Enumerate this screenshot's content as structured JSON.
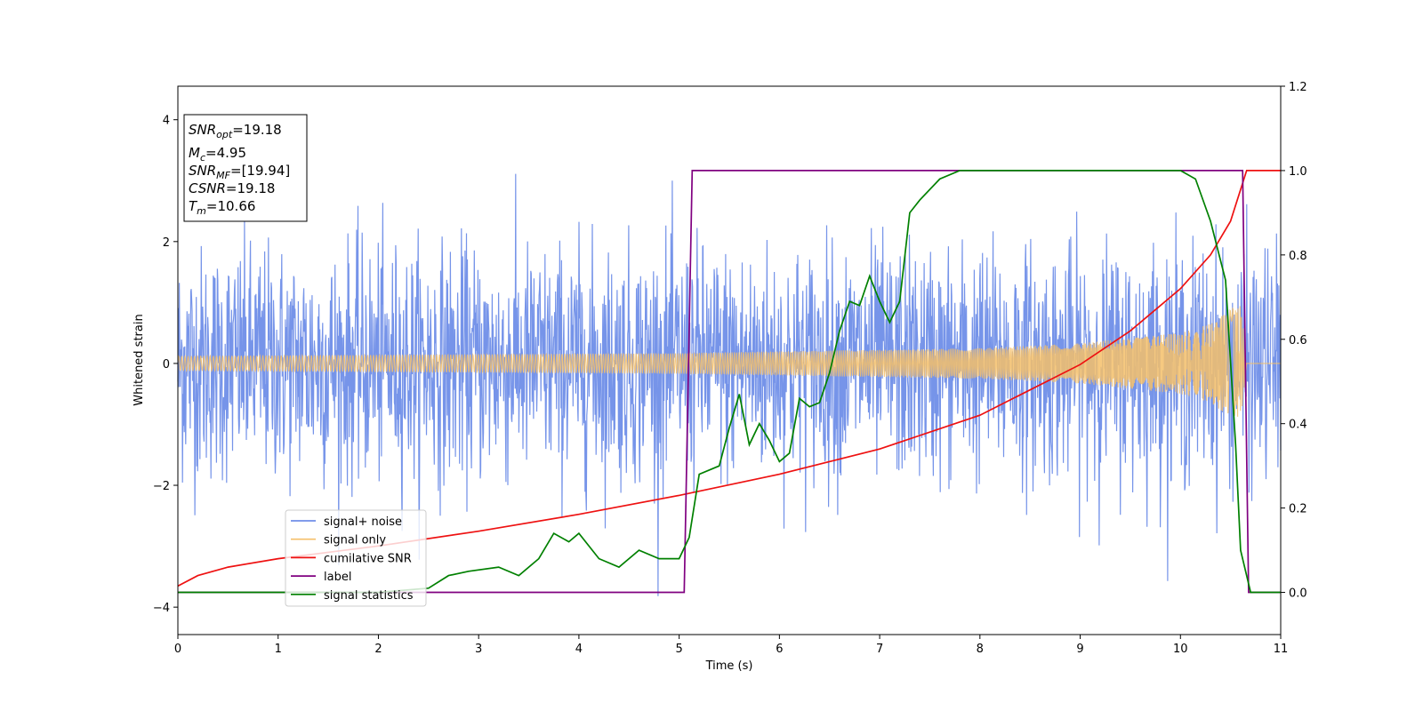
{
  "chart_data": {
    "type": "line",
    "xlabel": "Time (s)",
    "ylabel": "Whitened strain",
    "xlim": [
      0,
      11
    ],
    "ylim": [
      -4.45,
      4.55
    ],
    "y2lim": [
      -0.1,
      1.2
    ],
    "x_ticks": [
      "0",
      "1",
      "2",
      "3",
      "4",
      "5",
      "6",
      "7",
      "8",
      "9",
      "10",
      "11"
    ],
    "x_tick_values": [
      0,
      1,
      2,
      3,
      4,
      5,
      6,
      7,
      8,
      9,
      10,
      11
    ],
    "y_ticks": [
      "−4",
      "−2",
      "0",
      "2",
      "4"
    ],
    "y_tick_values": [
      -4,
      -2,
      0,
      2,
      4
    ],
    "y2_ticks": [
      "0.0",
      "0.2",
      "0.4",
      "0.6",
      "0.8",
      "1.0",
      "1.2"
    ],
    "y2_tick_values": [
      0,
      0.2,
      0.4,
      0.6,
      0.8,
      1.0,
      1.2
    ],
    "grid": false,
    "legend_position": "lower-left",
    "annotation": [
      {
        "var": "SNR",
        "sub": "opt",
        "value": "=19.18"
      },
      {
        "var": "M",
        "sub": "c",
        "value": "=4.95"
      },
      {
        "var": "SNR",
        "sub": "MF",
        "value": "=[19.94]"
      },
      {
        "var": "CSNR",
        "sub": "",
        "value": "=19.18"
      },
      {
        "var": "T",
        "sub": "m",
        "value": "=10.66"
      }
    ],
    "series": [
      {
        "name": "signal+ noise",
        "color": "#6f8ee8",
        "axis": "left",
        "description_values": {
          "noise_std": 0.95,
          "extent": [
            0,
            11
          ]
        }
      },
      {
        "name": "signal only",
        "color": "#f5c06a",
        "axis": "left",
        "envelope": {
          "t": [
            0,
            5,
            8,
            9,
            10,
            10.3,
            10.6,
            10.66
          ],
          "amp": [
            0.12,
            0.17,
            0.25,
            0.33,
            0.5,
            0.65,
            1.0,
            0.0
          ]
        }
      },
      {
        "name": "cumilative SNR",
        "color": "#ee1111",
        "axis": "right",
        "x": [
          0,
          0.2,
          0.5,
          1,
          2,
          3,
          4,
          5,
          6,
          7,
          8,
          9,
          9.5,
          10,
          10.3,
          10.5,
          10.66,
          11
        ],
        "y": [
          0.015,
          0.04,
          0.06,
          0.08,
          0.11,
          0.145,
          0.185,
          0.23,
          0.28,
          0.34,
          0.42,
          0.54,
          0.62,
          0.72,
          0.8,
          0.88,
          1.0,
          1.0
        ]
      },
      {
        "name": "label",
        "color": "#800080",
        "axis": "right",
        "x": [
          0,
          5.05,
          5.13,
          10.62,
          10.68,
          11
        ],
        "y": [
          0,
          0,
          1,
          1,
          0,
          0
        ]
      },
      {
        "name": "signal statistics",
        "color": "#008000",
        "axis": "right",
        "x": [
          0,
          1,
          2,
          2.5,
          2.7,
          2.9,
          3.2,
          3.4,
          3.6,
          3.75,
          3.9,
          4.0,
          4.2,
          4.4,
          4.6,
          4.8,
          5.0,
          5.1,
          5.2,
          5.4,
          5.5,
          5.6,
          5.7,
          5.8,
          5.9,
          6.0,
          6.1,
          6.2,
          6.3,
          6.4,
          6.5,
          6.6,
          6.7,
          6.8,
          6.9,
          7.0,
          7.1,
          7.2,
          7.3,
          7.4,
          7.6,
          7.8,
          8.0,
          9.0,
          10.0,
          10.15,
          10.3,
          10.45,
          10.55,
          10.6,
          10.7,
          11.0
        ],
        "y": [
          0,
          0,
          0,
          0.01,
          0.04,
          0.05,
          0.06,
          0.04,
          0.08,
          0.14,
          0.12,
          0.14,
          0.08,
          0.06,
          0.1,
          0.08,
          0.08,
          0.13,
          0.28,
          0.3,
          0.39,
          0.47,
          0.35,
          0.4,
          0.36,
          0.31,
          0.33,
          0.46,
          0.44,
          0.45,
          0.52,
          0.62,
          0.69,
          0.68,
          0.75,
          0.69,
          0.64,
          0.69,
          0.9,
          0.93,
          0.98,
          1.0,
          1.0,
          1.0,
          1.0,
          0.98,
          0.88,
          0.74,
          0.35,
          0.1,
          0.0,
          0.0
        ]
      }
    ]
  }
}
